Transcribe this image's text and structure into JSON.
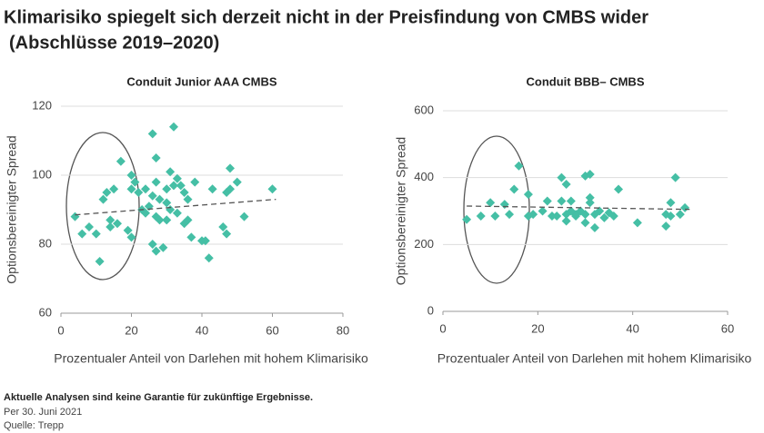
{
  "header": {
    "title_line1": "Klimarisiko spiegelt sich derzeit nicht in der Preisfindung von CMBS wider",
    "title_line2": "(Abschlüsse 2019–2020)"
  },
  "chart_data": [
    {
      "type": "scatter",
      "title": "Conduit Junior AAA CMBS",
      "x_label": "Prozentualer Anteil von Darlehen mit hohem Klimarisiko",
      "y_label": "Optionsbereinigter Spread",
      "color": "#45bfa5",
      "x": [
        4,
        6,
        8,
        10,
        11,
        12,
        13,
        14,
        14,
        15,
        16,
        17,
        19,
        20,
        20,
        20,
        21,
        22,
        23,
        24,
        24,
        25,
        26,
        26,
        26,
        27,
        27,
        27,
        27,
        28,
        28,
        29,
        30,
        30,
        30,
        31,
        31,
        32,
        32,
        33,
        33,
        34,
        35,
        35,
        36,
        36,
        37,
        38,
        40,
        41,
        42,
        43,
        46,
        47,
        47,
        48,
        48,
        50,
        52,
        60
      ],
      "values": [
        88,
        83,
        85,
        83,
        75,
        93,
        95,
        87,
        85,
        96,
        86,
        104,
        84,
        82,
        96,
        100,
        98,
        95,
        90,
        89,
        96,
        91,
        94,
        112,
        80,
        78,
        88,
        98,
        105,
        93,
        87,
        79,
        96,
        92,
        87,
        101,
        90,
        97,
        114,
        89,
        99,
        97,
        86,
        95,
        93,
        87,
        82,
        98,
        81,
        81,
        76,
        96,
        85,
        83,
        95,
        102,
        96,
        98,
        88,
        96
      ],
      "trendline": {
        "x": [
          4,
          61
        ],
        "y": [
          88.5,
          93
        ]
      },
      "xlim": [
        0,
        80
      ],
      "ylim": [
        60,
        120
      ],
      "xticks": [
        0,
        20,
        40,
        60,
        80
      ],
      "yticks": [
        60,
        80,
        100,
        120
      ],
      "grid": true
    },
    {
      "type": "scatter",
      "title": "Conduit BBB– CMBS",
      "x_label": "Prozentualer Anteil von Darlehen mit hohem Klimarisiko",
      "y_label": "Optionsbereinigter Spread",
      "color": "#45bfa5",
      "x": [
        5,
        8,
        10,
        11,
        13,
        14,
        15,
        16,
        18,
        18,
        19,
        21,
        22,
        23,
        24,
        25,
        25,
        26,
        26,
        26,
        27,
        27,
        28,
        28,
        29,
        30,
        30,
        30,
        31,
        31,
        31,
        32,
        32,
        33,
        34,
        35,
        36,
        37,
        41,
        47,
        47,
        48,
        48,
        49,
        50,
        51
      ],
      "values": [
        275,
        285,
        325,
        285,
        320,
        290,
        365,
        435,
        285,
        350,
        290,
        300,
        330,
        285,
        285,
        400,
        330,
        380,
        270,
        290,
        330,
        300,
        290,
        285,
        300,
        405,
        290,
        265,
        410,
        340,
        325,
        290,
        250,
        300,
        280,
        295,
        285,
        365,
        265,
        290,
        255,
        325,
        285,
        400,
        290,
        310
      ],
      "trendline": {
        "x": [
          5,
          52
        ],
        "y": [
          315,
          305
        ]
      },
      "xlim": [
        0,
        60
      ],
      "ylim": [
        0,
        600
      ],
      "xticks": [
        0,
        20,
        40,
        60
      ],
      "yticks": [
        0,
        200,
        400,
        600
      ],
      "grid": true
    }
  ],
  "footer": {
    "note": "Aktuelle Analysen sind keine Garantie für zukünftige Ergebnisse.",
    "date": "Per 30. Juni 2021",
    "source": "Quelle: Trepp"
  }
}
